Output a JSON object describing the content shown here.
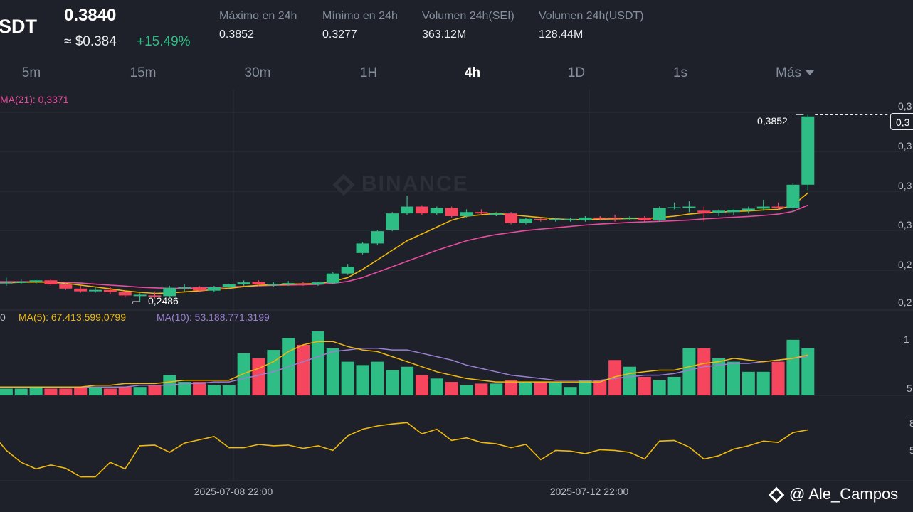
{
  "header": {
    "pair": "SDT",
    "price": "0.3840",
    "approx": "≈ $0.384",
    "change": "+15.49%"
  },
  "stats": [
    {
      "label": "Máximo en 24h",
      "value": "0.3852"
    },
    {
      "label": "Mínimo en 24h",
      "value": "0.3277"
    },
    {
      "label": "Volumen 24h(SEI)",
      "value": "363.12M"
    },
    {
      "label": "Volumen 24h(USDT)",
      "value": "128.44M"
    }
  ],
  "timeframes": [
    {
      "label": "5m",
      "active": false
    },
    {
      "label": "15m",
      "active": false
    },
    {
      "label": "30m",
      "active": false
    },
    {
      "label": "1H",
      "active": false
    },
    {
      "label": "4h",
      "active": true
    },
    {
      "label": "1D",
      "active": false
    },
    {
      "label": "1s",
      "active": false
    },
    {
      "label": "Más",
      "active": false
    }
  ],
  "indicators": {
    "ma21": "MA(21): 0,3371",
    "vol_prefix": "0",
    "ma5": "MA(5): 67.413.599,0799",
    "ma10": "MA(10): 53.188.771,3199"
  },
  "annotations": {
    "high": "0,3852",
    "low": "0,2486",
    "current_box": "0,3"
  },
  "right_axis": {
    "price": [
      "0,3",
      "0,3",
      "0,3",
      "0,3",
      "0,2",
      "0,2"
    ],
    "volume": [
      "1",
      "5"
    ],
    "oscillator": [
      "8",
      "5"
    ]
  },
  "x_axis": {
    "dates": [
      "2025-07-08 22:00",
      "2025-07-12 22:00"
    ]
  },
  "watermark": "BINANCE",
  "signature": "@ Ale_Campos",
  "colors": {
    "up": "#2ebd85",
    "down": "#f6465d",
    "ma_yellow": "#f0b90b",
    "ma_pink": "#e84c9f",
    "ma_purple": "#9b7fd4",
    "background": "#1e2129",
    "grid": "#2b2f38"
  },
  "chart_data": {
    "type": "candlestick",
    "interval": "4h",
    "candles": [
      {
        "o": 0.261,
        "h": 0.264,
        "l": 0.26,
        "c": 0.262
      },
      {
        "o": 0.262,
        "h": 0.266,
        "l": 0.26,
        "c": 0.2625
      },
      {
        "o": 0.2625,
        "h": 0.265,
        "l": 0.261,
        "c": 0.263
      },
      {
        "o": 0.263,
        "h": 0.265,
        "l": 0.2615,
        "c": 0.264
      },
      {
        "o": 0.264,
        "h": 0.265,
        "l": 0.26,
        "c": 0.261
      },
      {
        "o": 0.261,
        "h": 0.262,
        "l": 0.257,
        "c": 0.258
      },
      {
        "o": 0.258,
        "h": 0.26,
        "l": 0.255,
        "c": 0.256
      },
      {
        "o": 0.256,
        "h": 0.259,
        "l": 0.255,
        "c": 0.257
      },
      {
        "o": 0.257,
        "h": 0.259,
        "l": 0.254,
        "c": 0.2555
      },
      {
        "o": 0.2555,
        "h": 0.257,
        "l": 0.2515,
        "c": 0.253
      },
      {
        "o": 0.2525,
        "h": 0.2545,
        "l": 0.2486,
        "c": 0.2535
      },
      {
        "o": 0.253,
        "h": 0.256,
        "l": 0.2505,
        "c": 0.252
      },
      {
        "o": 0.2525,
        "h": 0.26,
        "l": 0.2515,
        "c": 0.2585
      },
      {
        "o": 0.2585,
        "h": 0.261,
        "l": 0.256,
        "c": 0.259
      },
      {
        "o": 0.259,
        "h": 0.26,
        "l": 0.2555,
        "c": 0.2565
      },
      {
        "o": 0.2565,
        "h": 0.26,
        "l": 0.2555,
        "c": 0.259
      },
      {
        "o": 0.259,
        "h": 0.2615,
        "l": 0.258,
        "c": 0.261
      },
      {
        "o": 0.261,
        "h": 0.264,
        "l": 0.26,
        "c": 0.2625
      },
      {
        "o": 0.263,
        "h": 0.264,
        "l": 0.26,
        "c": 0.261
      },
      {
        "o": 0.2605,
        "h": 0.2625,
        "l": 0.2595,
        "c": 0.2615
      },
      {
        "o": 0.2615,
        "h": 0.2635,
        "l": 0.26,
        "c": 0.262
      },
      {
        "o": 0.2615,
        "h": 0.263,
        "l": 0.26,
        "c": 0.261
      },
      {
        "o": 0.261,
        "h": 0.263,
        "l": 0.26,
        "c": 0.2625
      },
      {
        "o": 0.262,
        "h": 0.27,
        "l": 0.261,
        "c": 0.269
      },
      {
        "o": 0.269,
        "h": 0.276,
        "l": 0.268,
        "c": 0.274
      },
      {
        "o": 0.284,
        "h": 0.292,
        "l": 0.283,
        "c": 0.291
      },
      {
        "o": 0.291,
        "h": 0.301,
        "l": 0.29,
        "c": 0.3
      },
      {
        "o": 0.301,
        "h": 0.314,
        "l": 0.3,
        "c": 0.313
      },
      {
        "o": 0.313,
        "h": 0.326,
        "l": 0.312,
        "c": 0.318
      },
      {
        "o": 0.318,
        "h": 0.319,
        "l": 0.312,
        "c": 0.313
      },
      {
        "o": 0.313,
        "h": 0.318,
        "l": 0.312,
        "c": 0.317
      },
      {
        "o": 0.317,
        "h": 0.318,
        "l": 0.31,
        "c": 0.311
      },
      {
        "o": 0.311,
        "h": 0.316,
        "l": 0.31,
        "c": 0.314
      },
      {
        "o": 0.314,
        "h": 0.316,
        "l": 0.312,
        "c": 0.313
      },
      {
        "o": 0.312,
        "h": 0.314,
        "l": 0.311,
        "c": 0.313
      },
      {
        "o": 0.313,
        "h": 0.314,
        "l": 0.305,
        "c": 0.306
      },
      {
        "o": 0.306,
        "h": 0.31,
        "l": 0.305,
        "c": 0.309
      },
      {
        "o": 0.309,
        "h": 0.31,
        "l": 0.307,
        "c": 0.3085
      },
      {
        "o": 0.3085,
        "h": 0.3095,
        "l": 0.307,
        "c": 0.309
      },
      {
        "o": 0.3085,
        "h": 0.31,
        "l": 0.307,
        "c": 0.309
      },
      {
        "o": 0.308,
        "h": 0.311,
        "l": 0.307,
        "c": 0.31
      },
      {
        "o": 0.31,
        "h": 0.311,
        "l": 0.308,
        "c": 0.3095
      },
      {
        "o": 0.31,
        "h": 0.312,
        "l": 0.307,
        "c": 0.3095
      },
      {
        "o": 0.3095,
        "h": 0.311,
        "l": 0.308,
        "c": 0.31
      },
      {
        "o": 0.31,
        "h": 0.311,
        "l": 0.307,
        "c": 0.308
      },
      {
        "o": 0.308,
        "h": 0.318,
        "l": 0.307,
        "c": 0.317
      },
      {
        "o": 0.317,
        "h": 0.321,
        "l": 0.316,
        "c": 0.3175
      },
      {
        "o": 0.317,
        "h": 0.322,
        "l": 0.314,
        "c": 0.318
      },
      {
        "o": 0.315,
        "h": 0.318,
        "l": 0.307,
        "c": 0.313
      },
      {
        "o": 0.3135,
        "h": 0.316,
        "l": 0.311,
        "c": 0.315
      },
      {
        "o": 0.314,
        "h": 0.316,
        "l": 0.312,
        "c": 0.3155
      },
      {
        "o": 0.315,
        "h": 0.318,
        "l": 0.313,
        "c": 0.3165
      },
      {
        "o": 0.3165,
        "h": 0.323,
        "l": 0.315,
        "c": 0.318
      },
      {
        "o": 0.318,
        "h": 0.321,
        "l": 0.316,
        "c": 0.317
      },
      {
        "o": 0.317,
        "h": 0.335,
        "l": 0.314,
        "c": 0.334
      },
      {
        "o": 0.334,
        "h": 0.3852,
        "l": 0.33,
        "c": 0.384
      }
    ],
    "volume": [
      4,
      4,
      4,
      4,
      4,
      4,
      5,
      4,
      4,
      5,
      4,
      4,
      5,
      5,
      4,
      5,
      5,
      6,
      12,
      8,
      8,
      6,
      6,
      25,
      22,
      27,
      34,
      30,
      38,
      28,
      20,
      18,
      20,
      15,
      17,
      12,
      10,
      8,
      6,
      7,
      7,
      9,
      8,
      8,
      8,
      5,
      9,
      9,
      21,
      17,
      11,
      9,
      11,
      28,
      28,
      22,
      20,
      14,
      14,
      20,
      33,
      28
    ],
    "ma5_volume": [
      5,
      5,
      5,
      5,
      5,
      5,
      5,
      5,
      5,
      5,
      5,
      5,
      5,
      6,
      6,
      7,
      7,
      7,
      8,
      9,
      9,
      9,
      9,
      13,
      16,
      20,
      26,
      30,
      32,
      32,
      29,
      27,
      26,
      23,
      20,
      17,
      14,
      12,
      10,
      9,
      8,
      8,
      8,
      8,
      8,
      8,
      8,
      8,
      11,
      13,
      14,
      15,
      15,
      17,
      19,
      20,
      22,
      21,
      20,
      21,
      22,
      24
    ],
    "ma10_volume": [
      5,
      5,
      5,
      5,
      5,
      5,
      5,
      5,
      5,
      5,
      5,
      5,
      5,
      5,
      5,
      5,
      6,
      6,
      6,
      7,
      7,
      8,
      8,
      10,
      12,
      14,
      17,
      20,
      23,
      26,
      27,
      28,
      28,
      27,
      27,
      25,
      23,
      21,
      18,
      16,
      14,
      12,
      11,
      10,
      9,
      9,
      9,
      9,
      10,
      11,
      12,
      12,
      13,
      15,
      17,
      18,
      19,
      19,
      20,
      21,
      22,
      23
    ],
    "oscillator": [
      62,
      62,
      61,
      61,
      75,
      48,
      30,
      20,
      26,
      21,
      8,
      8,
      30,
      20,
      55,
      56,
      45,
      59,
      64,
      69,
      52,
      52,
      57,
      55,
      56,
      51,
      55,
      48,
      70,
      80,
      85,
      88,
      90,
      73,
      80,
      63,
      67,
      60,
      58,
      52,
      57,
      34,
      48,
      47,
      43,
      49,
      48,
      45,
      35,
      62,
      63,
      53,
      35,
      40,
      50,
      55,
      62,
      60,
      75,
      79
    ],
    "ma_yellow_price": [
      0.262,
      0.2622,
      0.2625,
      0.2628,
      0.2626,
      0.2618,
      0.2605,
      0.2592,
      0.2578,
      0.2563,
      0.2553,
      0.2545,
      0.2548,
      0.2556,
      0.2563,
      0.2573,
      0.2582,
      0.2594,
      0.2604,
      0.2608,
      0.2612,
      0.2614,
      0.2616,
      0.2632,
      0.266,
      0.272,
      0.279,
      0.286,
      0.293,
      0.298,
      0.303,
      0.308,
      0.311,
      0.312,
      0.313,
      0.312,
      0.311,
      0.31,
      0.309,
      0.3085,
      0.3085,
      0.3088,
      0.309,
      0.3093,
      0.3092,
      0.31,
      0.311,
      0.3125,
      0.3135,
      0.314,
      0.3145,
      0.3148,
      0.3155,
      0.316,
      0.319,
      0.328
    ],
    "ma_pink_price": [
      0.263,
      0.263,
      0.263,
      0.263,
      0.2628,
      0.2625,
      0.262,
      0.2612,
      0.2605,
      0.2598,
      0.259,
      0.2585,
      0.2582,
      0.2582,
      0.2584,
      0.2588,
      0.2592,
      0.2596,
      0.26,
      0.2604,
      0.2606,
      0.2608,
      0.261,
      0.2618,
      0.2632,
      0.266,
      0.27,
      0.274,
      0.278,
      0.282,
      0.286,
      0.2895,
      0.293,
      0.2955,
      0.2975,
      0.299,
      0.3005,
      0.3015,
      0.3025,
      0.3035,
      0.3045,
      0.3052,
      0.3058,
      0.3064,
      0.3068,
      0.3072,
      0.3076,
      0.3082,
      0.309,
      0.3096,
      0.3102,
      0.3108,
      0.3115,
      0.3125,
      0.3145,
      0.319
    ]
  }
}
